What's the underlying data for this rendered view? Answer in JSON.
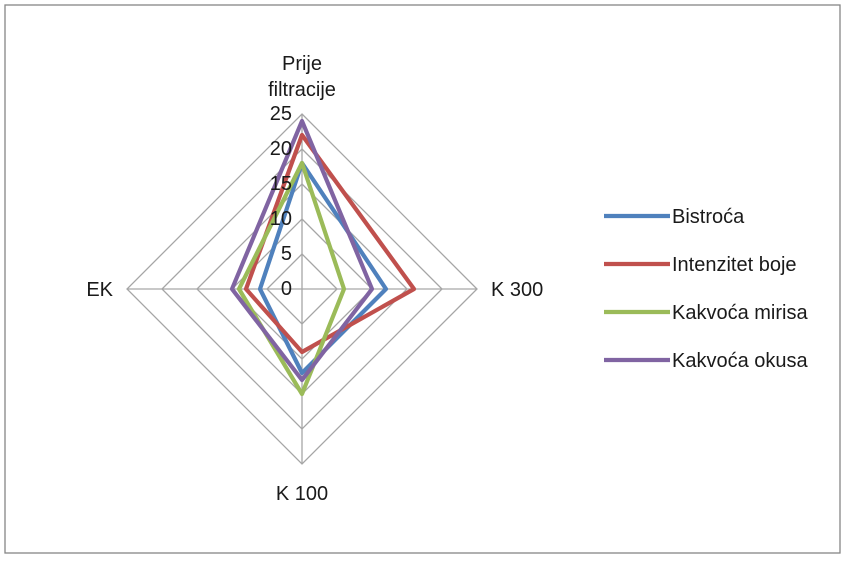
{
  "chart_data": {
    "type": "radar",
    "title": "",
    "axes": [
      "Prije filtracije",
      "K 300",
      "K 100",
      "EK"
    ],
    "axis_label_lines": {
      "Prije filtracije": [
        "Prije",
        "filtracije"
      ],
      "K 300": [
        "K 300"
      ],
      "K 100": [
        "K 100"
      ],
      "EK": [
        "EK"
      ]
    },
    "scale_ticks": [
      0,
      5,
      10,
      15,
      20,
      25
    ],
    "range": [
      0,
      25
    ],
    "grid": true,
    "legend_position": "right",
    "series": [
      {
        "name": "Bistroća",
        "color": "#4f81bd",
        "values": [
          18,
          12,
          12,
          6
        ]
      },
      {
        "name": "Intenzitet boje",
        "color": "#c0504d",
        "values": [
          22,
          16,
          9,
          8
        ]
      },
      {
        "name": "Kakvoća mirisa",
        "color": "#9bbb59",
        "values": [
          18,
          6,
          15,
          9
        ]
      },
      {
        "name": "Kakvoća okusa",
        "color": "#8064a2",
        "values": [
          24,
          10,
          13,
          10
        ]
      }
    ]
  }
}
